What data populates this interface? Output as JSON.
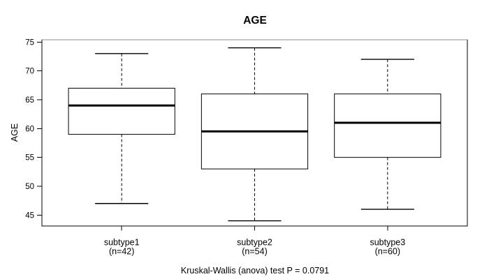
{
  "window": {
    "background": "#ffffff"
  },
  "chart_data": {
    "type": "boxplot",
    "title": "AGE",
    "ylabel": "AGE",
    "xlabel": "",
    "yticks": [
      45,
      50,
      55,
      60,
      65,
      70,
      75
    ],
    "ylim": [
      43.1,
      75.4
    ],
    "grid": false,
    "legend": "none",
    "categories": [
      "subtype1",
      "subtype2",
      "subtype3"
    ],
    "category_sublabels": [
      "(n=42)",
      "(n=54)",
      "(n=60)"
    ],
    "series": [
      {
        "name": "subtype1",
        "n": 42,
        "whisker_low": 47,
        "q1": 59,
        "median": 64,
        "q3": 67,
        "whisker_high": 73,
        "outliers": []
      },
      {
        "name": "subtype2",
        "n": 54,
        "whisker_low": 44,
        "q1": 53,
        "median": 59.5,
        "q3": 66,
        "whisker_high": 74,
        "outliers": []
      },
      {
        "name": "subtype3",
        "n": 60,
        "whisker_low": 46,
        "q1": 55,
        "median": 61,
        "q3": 66,
        "whisker_high": 72,
        "outliers": []
      }
    ],
    "annotation": "Kruskal-Wallis (anova) test P = 0.0791",
    "colors": {
      "line": "#000000",
      "median": "#000000",
      "box_fill": "#ffffff",
      "frame_top": "#8c8c8c",
      "text": "#000000",
      "background": "#ffffff"
    }
  }
}
